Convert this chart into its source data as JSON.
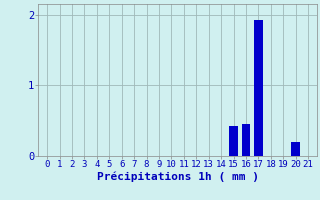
{
  "categories": [
    0,
    1,
    2,
    3,
    4,
    5,
    6,
    7,
    8,
    9,
    10,
    11,
    12,
    13,
    14,
    15,
    16,
    17,
    18,
    19,
    20,
    21
  ],
  "values": [
    0,
    0,
    0,
    0,
    0,
    0,
    0,
    0,
    0,
    0,
    0,
    0,
    0,
    0,
    0,
    0.42,
    0.45,
    1.93,
    0,
    0,
    0.2,
    0
  ],
  "bar_color": "#0000cc",
  "background_color": "#d0f0f0",
  "grid_color": "#a0b8b8",
  "text_color": "#0000bb",
  "xlabel": "Précipitations 1h ( mm )",
  "ylim": [
    0,
    2.15
  ],
  "yticks": [
    0,
    1,
    2
  ],
  "tick_fontsize": 6.5,
  "xlabel_fontsize": 8
}
